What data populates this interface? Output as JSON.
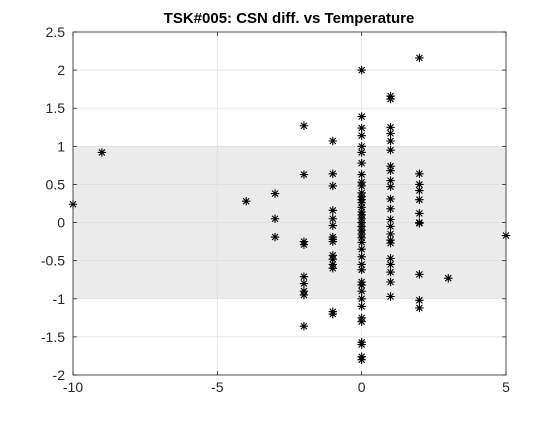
{
  "chart_data": {
    "type": "scatter",
    "title": "TSK#005: CSN diff. vs Temperature",
    "xlabel": "",
    "ylabel": "",
    "xlim": [
      -10,
      5
    ],
    "ylim": [
      -2,
      2.5
    ],
    "xticks": [
      -10,
      -5,
      0,
      5
    ],
    "yticks": [
      -2,
      -1.5,
      -1,
      -0.5,
      0,
      0.5,
      1,
      1.5,
      2,
      2.5
    ],
    "xtick_labels": [
      "-10",
      "-5",
      "0",
      "5"
    ],
    "ytick_labels": [
      "-2",
      "-1.5",
      "-1",
      "-0.5",
      "0",
      "0.5",
      "1",
      "1.5",
      "2",
      "2.5"
    ],
    "grid": true,
    "band": {
      "y_min": -1,
      "y_max": 1,
      "color": "#ebebeb"
    },
    "marker": "asterisk",
    "marker_color": "#000000",
    "points": [
      [
        -10,
        0.24
      ],
      [
        -9,
        0.92
      ],
      [
        -4,
        0.28
      ],
      [
        -3,
        0.38
      ],
      [
        -3,
        0.05
      ],
      [
        -3,
        -0.19
      ],
      [
        -2,
        1.27
      ],
      [
        -2,
        0.63
      ],
      [
        -2,
        -0.25
      ],
      [
        -2,
        -0.29
      ],
      [
        -2,
        -0.71
      ],
      [
        -2,
        -0.8
      ],
      [
        -2,
        -0.9
      ],
      [
        -2,
        -0.95
      ],
      [
        -2,
        -1.36
      ],
      [
        -1,
        1.07
      ],
      [
        -1,
        0.64
      ],
      [
        -1,
        0.48
      ],
      [
        -1,
        0.16
      ],
      [
        -1,
        0.05
      ],
      [
        -1,
        -0.04
      ],
      [
        -1,
        -0.19
      ],
      [
        -1,
        -0.22
      ],
      [
        -1,
        -0.25
      ],
      [
        -1,
        -0.43
      ],
      [
        -1,
        -0.48
      ],
      [
        -1,
        -0.55
      ],
      [
        -1,
        -0.6
      ],
      [
        -1,
        -1.17
      ],
      [
        -1,
        -1.2
      ],
      [
        0,
        2.0
      ],
      [
        0,
        1.39
      ],
      [
        0,
        1.24
      ],
      [
        0,
        1.14
      ],
      [
        0,
        1.0
      ],
      [
        0,
        0.92
      ],
      [
        0,
        0.78
      ],
      [
        0,
        0.63
      ],
      [
        0,
        0.53
      ],
      [
        0,
        0.48
      ],
      [
        0,
        0.39
      ],
      [
        0,
        0.34
      ],
      [
        0,
        0.3
      ],
      [
        0,
        0.26
      ],
      [
        0,
        0.2
      ],
      [
        0,
        0.14
      ],
      [
        0,
        0.1
      ],
      [
        0,
        0.05
      ],
      [
        0,
        0.0
      ],
      [
        0,
        -0.05
      ],
      [
        0,
        -0.1
      ],
      [
        0,
        -0.15
      ],
      [
        0,
        -0.2
      ],
      [
        0,
        -0.26
      ],
      [
        0,
        -0.35
      ],
      [
        0,
        -0.45
      ],
      [
        0,
        -0.55
      ],
      [
        0,
        -0.62
      ],
      [
        0,
        -0.78
      ],
      [
        0,
        -0.82
      ],
      [
        0,
        -0.9
      ],
      [
        0,
        -1.0
      ],
      [
        0,
        -1.1
      ],
      [
        0,
        -1.25
      ],
      [
        0,
        -1.3
      ],
      [
        0,
        -1.57
      ],
      [
        0,
        -1.6
      ],
      [
        0,
        -1.76
      ],
      [
        0,
        -1.8
      ],
      [
        1,
        1.66
      ],
      [
        1,
        1.62
      ],
      [
        1,
        1.25
      ],
      [
        1,
        1.17
      ],
      [
        1,
        1.07
      ],
      [
        1,
        0.95
      ],
      [
        1,
        0.74
      ],
      [
        1,
        0.68
      ],
      [
        1,
        0.55
      ],
      [
        1,
        0.47
      ],
      [
        1,
        0.31
      ],
      [
        1,
        0.18
      ],
      [
        1,
        0.04
      ],
      [
        1,
        -0.05
      ],
      [
        1,
        -0.15
      ],
      [
        1,
        -0.23
      ],
      [
        1,
        -0.27
      ],
      [
        1,
        -0.47
      ],
      [
        1,
        -0.55
      ],
      [
        1,
        -0.65
      ],
      [
        1,
        -0.78
      ],
      [
        1,
        -0.97
      ],
      [
        2,
        2.16
      ],
      [
        2,
        0.64
      ],
      [
        2,
        0.5
      ],
      [
        2,
        0.42
      ],
      [
        2,
        0.3
      ],
      [
        2,
        0.12
      ],
      [
        2,
        0.0
      ],
      [
        2,
        -0.01
      ],
      [
        2,
        -0.68
      ],
      [
        2,
        -1.02
      ],
      [
        2,
        -1.12
      ],
      [
        3,
        -0.73
      ],
      [
        5,
        -0.17
      ]
    ]
  }
}
